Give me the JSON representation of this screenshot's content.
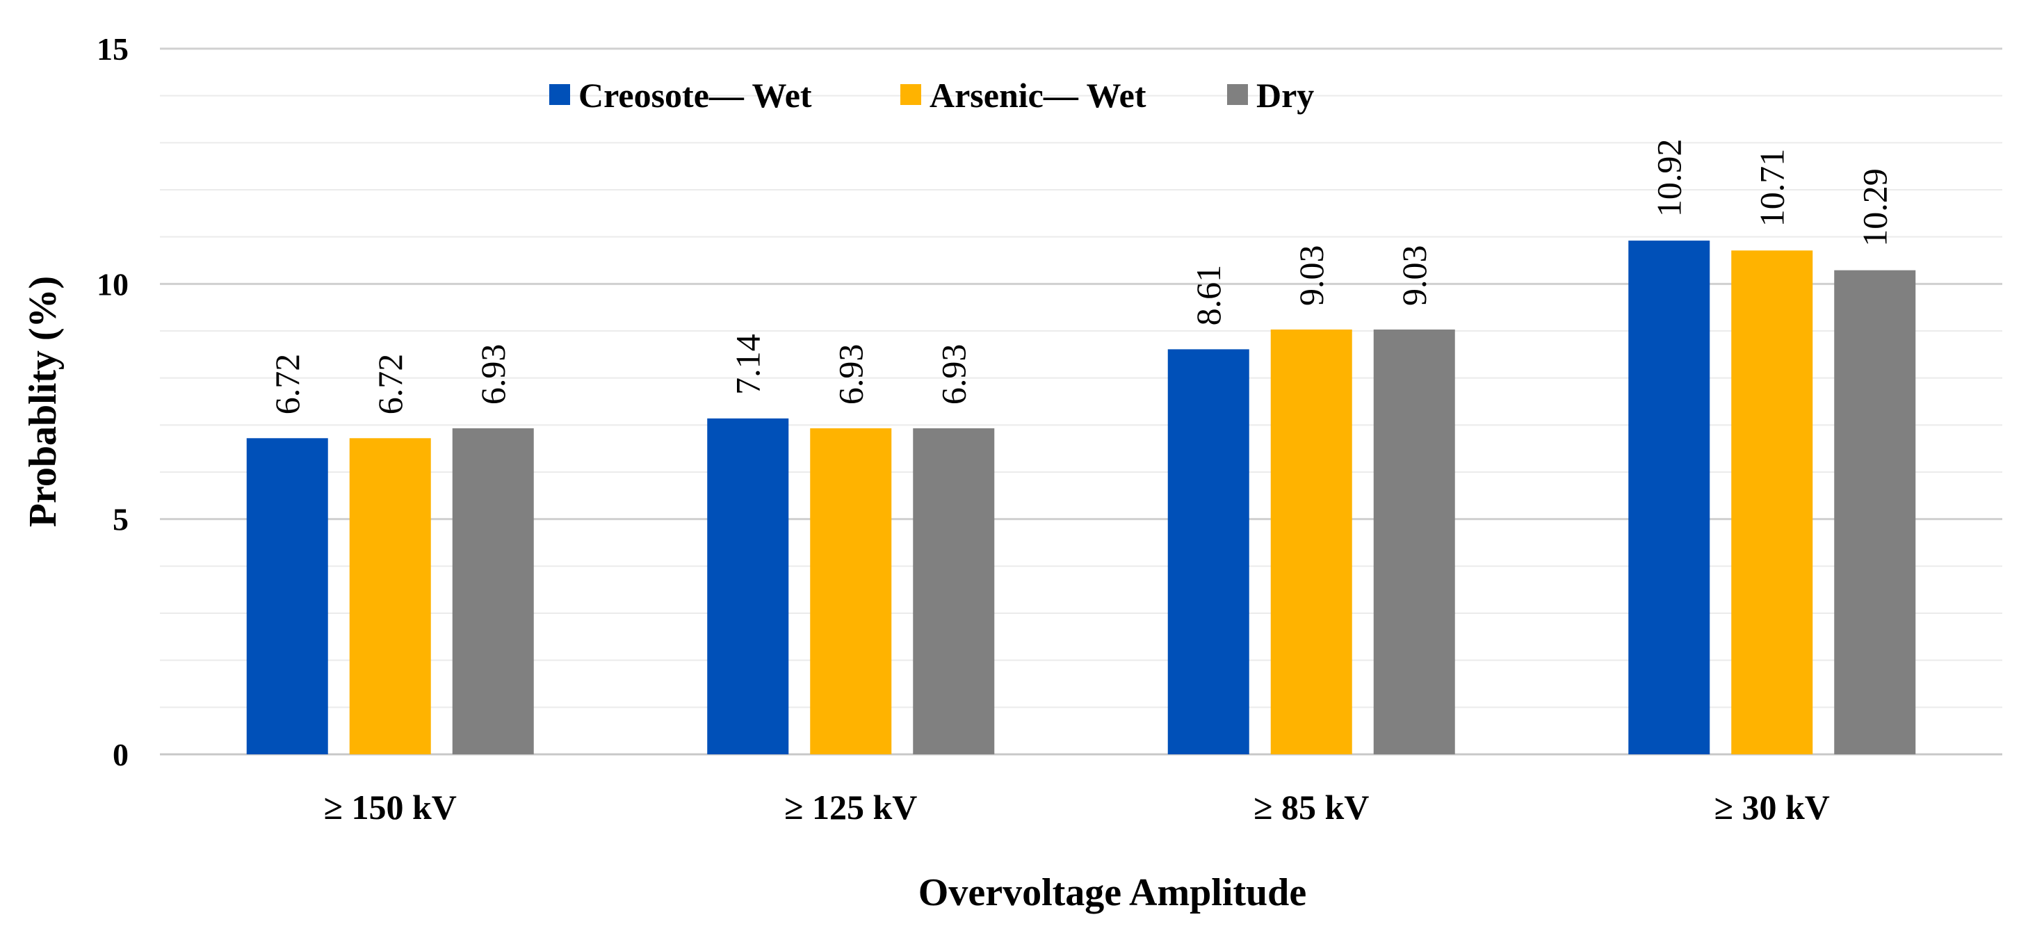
{
  "chart_data": {
    "type": "bar",
    "title": "",
    "xlabel": "Overvoltage Amplitude",
    "ylabel": "Probablity (%)",
    "ylim": [
      0,
      15
    ],
    "major_ticks": [
      0,
      5,
      10,
      15
    ],
    "minor_step": 1,
    "grid": true,
    "legend_position": "top",
    "categories": [
      "≥ 150 kV",
      "≥ 125 kV",
      "≥ 85 kV",
      "≥ 30 kV"
    ],
    "series": [
      {
        "name": "Creosote— Wet",
        "color": "#0050B8",
        "values": [
          6.72,
          7.14,
          8.61,
          10.92
        ]
      },
      {
        "name": "Arsenic— Wet",
        "color": "#FFB300",
        "values": [
          6.72,
          6.93,
          9.03,
          10.71
        ]
      },
      {
        "name": "Dry",
        "color": "#808080",
        "values": [
          6.93,
          6.93,
          9.03,
          10.29
        ]
      }
    ]
  }
}
